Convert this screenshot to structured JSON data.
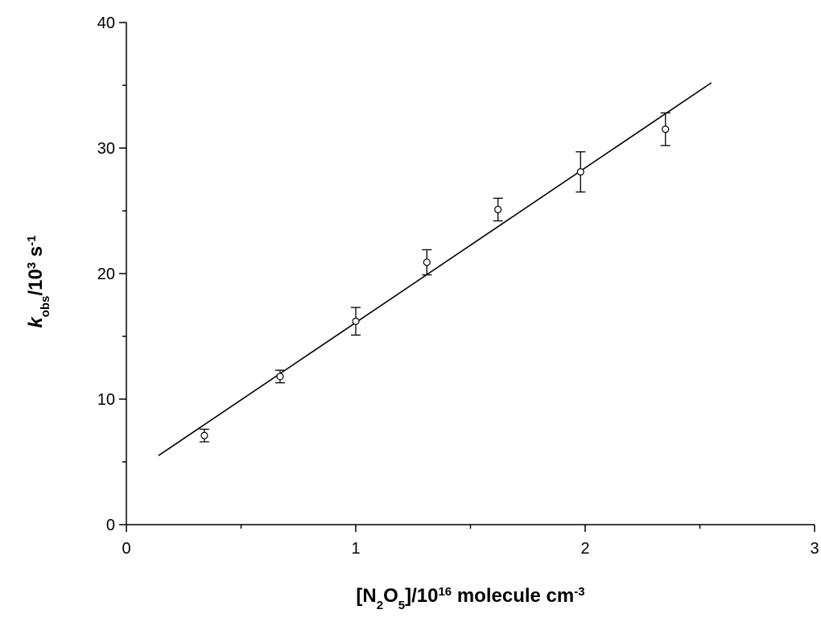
{
  "chart_data": {
    "type": "scatter",
    "title": "",
    "xlabel": {
      "text": "[N2O5]/10^16 molecule cm^-3",
      "parts": [
        {
          "t": "[N",
          "style": "normal"
        },
        {
          "t": "2",
          "style": "sub"
        },
        {
          "t": "O",
          "style": "normal"
        },
        {
          "t": "5",
          "style": "sub"
        },
        {
          "t": "]/10",
          "style": "normal"
        },
        {
          "t": "16",
          "style": "sup"
        },
        {
          "t": " molecule cm",
          "style": "normal"
        },
        {
          "t": "-3",
          "style": "sup"
        }
      ]
    },
    "ylabel": {
      "text": "k_obs/10^3 s^-1",
      "parts": [
        {
          "t": "k",
          "style": "italic"
        },
        {
          "t": "obs",
          "style": "sub"
        },
        {
          "t": "/10",
          "style": "normal"
        },
        {
          "t": "3",
          "style": "sup"
        },
        {
          "t": " s",
          "style": "normal"
        },
        {
          "t": "-1",
          "style": "sup"
        }
      ]
    },
    "xlim": [
      0,
      3
    ],
    "ylim": [
      0,
      40
    ],
    "xticks": [
      0,
      1,
      2,
      3
    ],
    "xtick_labels": [
      "0",
      "1",
      "2",
      "3"
    ],
    "xminor": [
      0.5,
      1.5,
      2.5
    ],
    "yticks": [
      0,
      10,
      20,
      30,
      40
    ],
    "ytick_labels": [
      "0",
      "10",
      "20",
      "30",
      "40"
    ],
    "yminor": [
      5,
      15,
      25,
      35
    ],
    "grid": false,
    "series": [
      {
        "kind": "points_with_error",
        "marker": "open-circle",
        "x": [
          0.34,
          0.67,
          1.0,
          1.31,
          1.62,
          1.98,
          2.35
        ],
        "y": [
          7.1,
          11.8,
          16.2,
          20.9,
          25.1,
          28.1,
          31.5
        ],
        "yerr": [
          0.5,
          0.5,
          1.1,
          1.0,
          0.9,
          1.6,
          1.3
        ]
      },
      {
        "kind": "fit_line",
        "x": [
          0.14,
          2.55
        ],
        "y": [
          5.5,
          35.2
        ]
      }
    ],
    "colors": {
      "ink": "#000000",
      "background": "#ffffff"
    }
  }
}
